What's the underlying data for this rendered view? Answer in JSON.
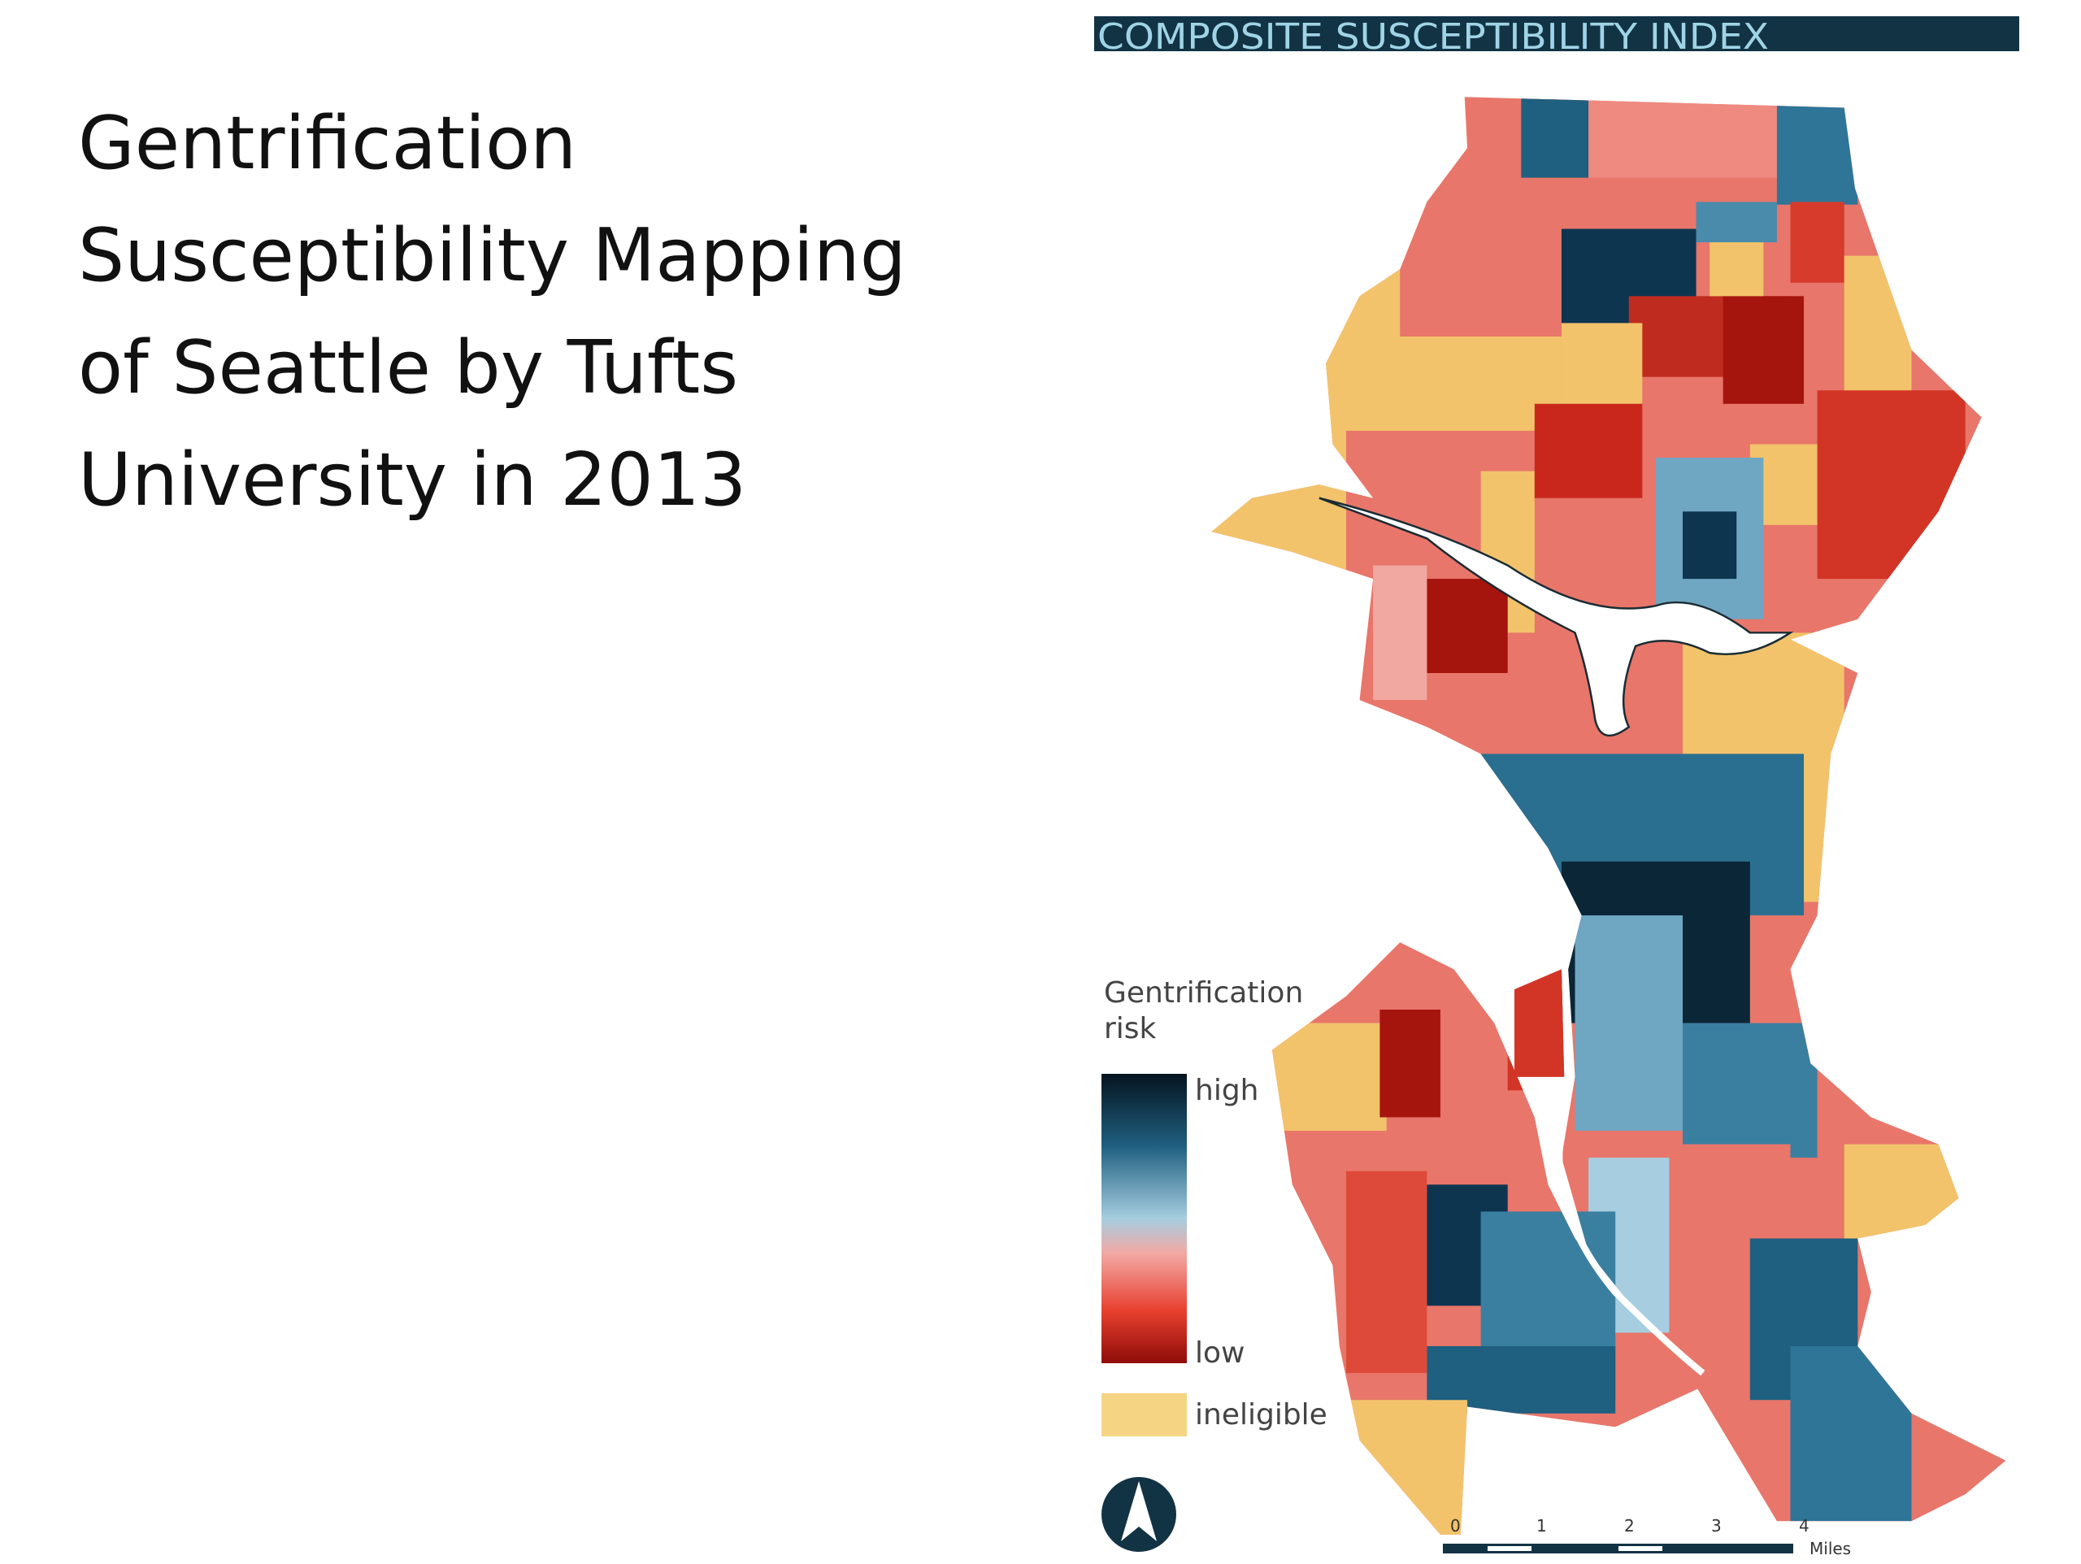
{
  "title": {
    "lines": [
      "Gentrification",
      "Susceptibility Mapping",
      "of Seattle by Tufts",
      "University in 2013"
    ]
  },
  "map": {
    "header": "COMPOSITE SUSCEPTIBILITY INDEX",
    "legend": {
      "title_lines": [
        "Gentrification",
        "risk"
      ],
      "high": "high",
      "low": "low",
      "ineligible": "ineligible"
    },
    "scale": {
      "labels": [
        "0",
        "1",
        "2",
        "3",
        "4"
      ],
      "unit": "Miles"
    }
  }
}
